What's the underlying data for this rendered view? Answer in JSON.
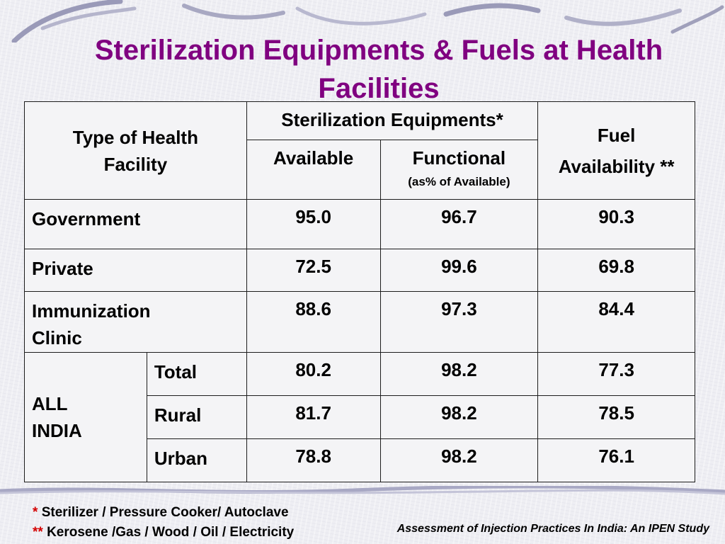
{
  "title_line1": "Sterilization Equipments & Fuels at Health",
  "title_line2": "Facilities",
  "table": {
    "header": {
      "type_of_facility": "Type of Health Facility",
      "sterilization_equipments": "Sterilization Equipments*",
      "available": "Available",
      "functional": "Functional",
      "functional_sub": "(as% of Available)",
      "fuel_line1": "Fuel",
      "fuel_line2": "Availability **"
    },
    "rows": [
      {
        "label": "Government",
        "available": "95.0",
        "functional": "96.7",
        "fuel": "90.3"
      },
      {
        "label": "Private",
        "available": "72.5",
        "functional": "99.6",
        "fuel": "69.8"
      },
      {
        "label_line1": "Immunization",
        "label_line2": "Clinic",
        "available": "88.6",
        "functional": "97.3",
        "fuel": "84.4"
      }
    ],
    "all_india": {
      "label_line1": "ALL",
      "label_line2": "INDIA",
      "rows": [
        {
          "label": "Total",
          "available": "80.2",
          "functional": "98.2",
          "fuel": "77.3"
        },
        {
          "label": "Rural",
          "available": "81.7",
          "functional": "98.2",
          "fuel": "78.5"
        },
        {
          "label": "Urban",
          "available": "78.8",
          "functional": "98.2",
          "fuel": "76.1"
        }
      ]
    }
  },
  "footnotes": {
    "marker1": "*",
    "note1": "Sterilizer / Pressure Cooker/ Autoclave",
    "marker2": "**",
    "note2": "Kerosene /Gas / Wood / Oil / Electricity"
  },
  "source": "Assessment of Injection Practices In India: An IPEN Study",
  "colors": {
    "title": "#800080",
    "numbers": "#3b3b74",
    "footnote_marker": "#d40000",
    "background": "#eeeef3"
  }
}
